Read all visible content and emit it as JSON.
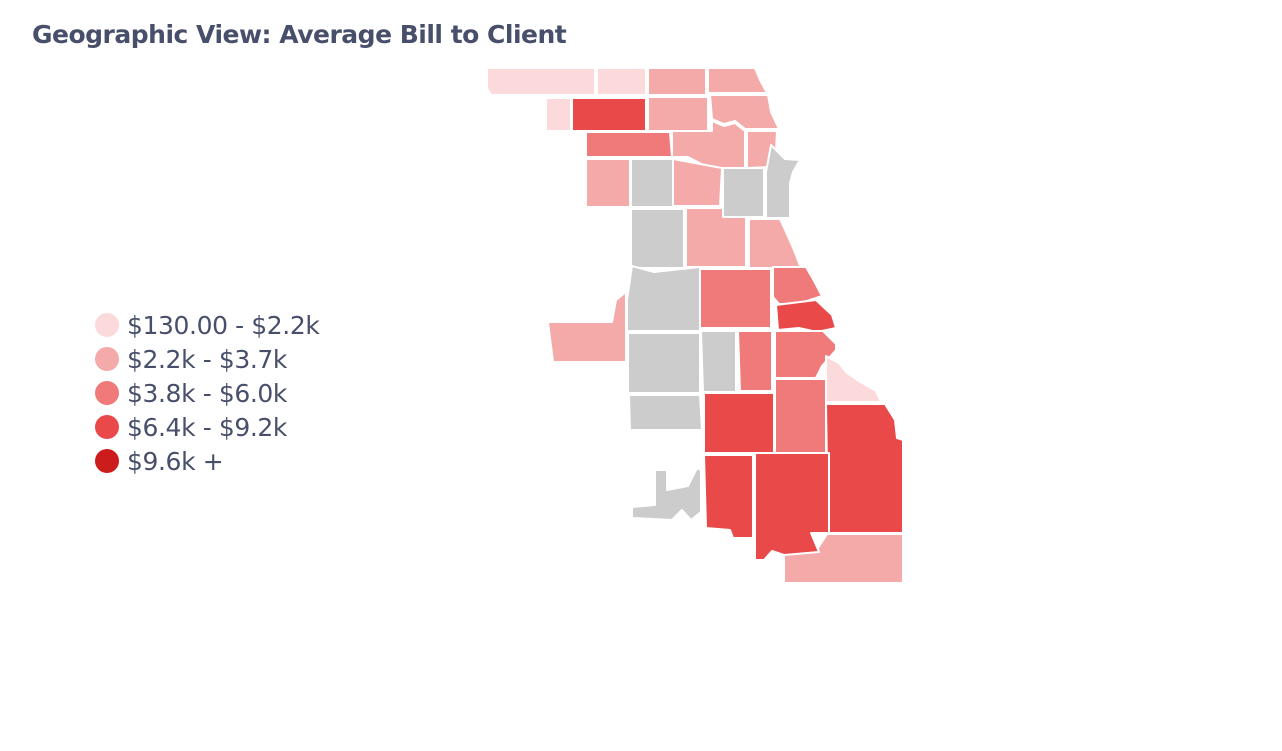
{
  "title": "Geographic View: Average Bill to Client",
  "chart_data": {
    "type": "choropleth",
    "title": "Geographic View: Average Bill to Client",
    "no_data_color": "#cccccc",
    "legend": {
      "placement": "left",
      "bins": [
        {
          "label": "$130.00 - $2.2k",
          "color": "#fcd9da"
        },
        {
          "label": "$2.2k - $3.7k",
          "color": "#f5aaaa"
        },
        {
          "label": "$3.8k - $6.0k",
          "color": "#f07a7a"
        },
        {
          "label": "$6.4k - $9.2k",
          "color": "#ea4949"
        },
        {
          "label": "$9.6k +",
          "color": "#cc1c1c"
        }
      ]
    },
    "regions": [
      {
        "bin": 0,
        "color": "#fcd9da"
      },
      {
        "bin": 0,
        "color": "#fcd9da"
      },
      {
        "bin": 0,
        "color": "#fcd9da"
      },
      {
        "bin": 1,
        "color": "#f5aaaa"
      },
      {
        "bin": 1,
        "color": "#f5aaaa"
      },
      {
        "bin": 3,
        "color": "#ea4949"
      },
      {
        "bin": 1,
        "color": "#f5aaaa"
      },
      {
        "bin": 1,
        "color": "#f5aaaa"
      },
      {
        "bin": 2,
        "color": "#f07a7a"
      },
      {
        "bin": 1,
        "color": "#f5aaaa"
      },
      {
        "bin": 1,
        "color": "#f5aaaa"
      },
      {
        "bin": 1,
        "color": "#f5aaaa"
      },
      {
        "bin": 1,
        "color": "#f5aaaa"
      },
      {
        "bin": 1,
        "color": "#f5aaaa"
      },
      {
        "bin": 1,
        "color": "#f5aaaa"
      },
      {
        "bin": 1,
        "color": "#f5aaaa"
      },
      {
        "bin": 2,
        "color": "#f07a7a"
      },
      {
        "bin": 2,
        "color": "#f07a7a"
      },
      {
        "bin": 3,
        "color": "#ea4949"
      },
      {
        "bin": 2,
        "color": "#f07a7a"
      },
      {
        "bin": 2,
        "color": "#f07a7a"
      },
      {
        "bin": 0,
        "color": "#fcd9da"
      },
      {
        "bin": 3,
        "color": "#ea4949"
      },
      {
        "bin": 2,
        "color": "#f07a7a"
      },
      {
        "bin": 3,
        "color": "#ea4949"
      },
      {
        "bin": 3,
        "color": "#ea4949"
      },
      {
        "bin": 3,
        "color": "#ea4949"
      },
      {
        "bin": 1,
        "color": "#f5aaaa"
      },
      {
        "bin": null,
        "color": "#cccccc"
      },
      {
        "bin": null,
        "color": "#cccccc"
      },
      {
        "bin": null,
        "color": "#cccccc"
      },
      {
        "bin": null,
        "color": "#cccccc"
      },
      {
        "bin": null,
        "color": "#cccccc"
      },
      {
        "bin": null,
        "color": "#cccccc"
      },
      {
        "bin": null,
        "color": "#cccccc"
      },
      {
        "bin": null,
        "color": "#cccccc"
      },
      {
        "bin": null,
        "color": "#cccccc"
      },
      {
        "bin": null,
        "color": "#cccccc"
      },
      {
        "bin": null,
        "color": "#cccccc"
      }
    ]
  }
}
